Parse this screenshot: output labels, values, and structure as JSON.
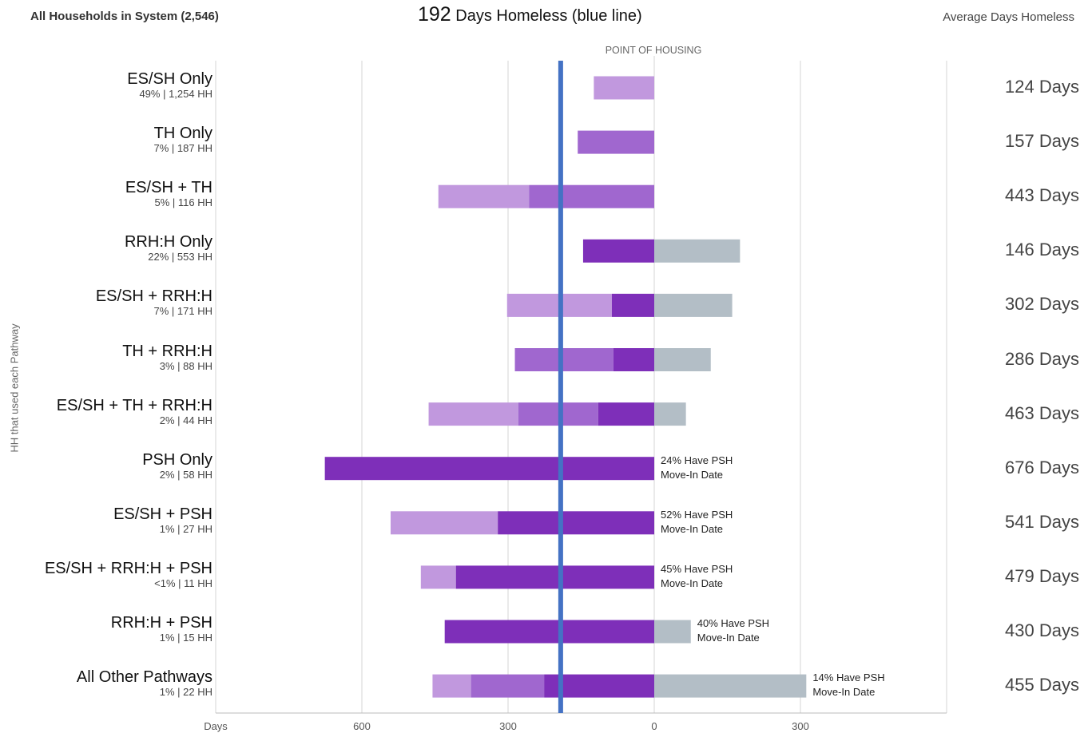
{
  "header": {
    "left_title": "All Households in System (2,546)",
    "center_number": "192",
    "center_text": " Days Homeless (blue line)",
    "right_title": "Average Days Homeless"
  },
  "y_axis_title": "HH that used each Pathway",
  "point_of_housing_label": "POINT OF HOUSING",
  "colors": {
    "light_purple": "#c198de",
    "mid_purple": "#a067cf",
    "dark_purple": "#7e2fb9",
    "gray": "#b3bec6",
    "average_line": "#4472c4",
    "gridline": "#d4d4d4"
  },
  "chart_data": {
    "type": "bar",
    "orientation": "horizontal-diverging",
    "x_axis": {
      "ticks": [
        {
          "value": -900,
          "label": "Days"
        },
        {
          "value": -600,
          "label": "600"
        },
        {
          "value": -300,
          "label": "300"
        },
        {
          "value": 0,
          "label": "0"
        },
        {
          "value": 300,
          "label": "300"
        }
      ],
      "range": [
        -900,
        600
      ],
      "grid": true
    },
    "average_line_days": 192,
    "categories": [
      {
        "name": "ES/SH Only",
        "sub": "49% | 1,254 HH",
        "avg": "124 Days",
        "segments": [
          {
            "from": -124,
            "to": 0,
            "color": "light_purple"
          }
        ],
        "note": ""
      },
      {
        "name": "TH Only",
        "sub": "7% | 187 HH",
        "avg": "157 Days",
        "segments": [
          {
            "from": -157,
            "to": 0,
            "color": "mid_purple"
          }
        ],
        "note": ""
      },
      {
        "name": "ES/SH + TH",
        "sub": "5% | 116 HH",
        "avg": "443 Days",
        "segments": [
          {
            "from": -443,
            "to": -257,
            "color": "light_purple"
          },
          {
            "from": -257,
            "to": 0,
            "color": "mid_purple"
          }
        ],
        "note": ""
      },
      {
        "name": "RRH:H Only",
        "sub": "22% | 553 HH",
        "avg": "146 Days",
        "segments": [
          {
            "from": -146,
            "to": 0,
            "color": "dark_purple"
          },
          {
            "from": 0,
            "to": 176,
            "color": "gray"
          }
        ],
        "note": ""
      },
      {
        "name": "ES/SH + RRH:H",
        "sub": "7% | 171 HH",
        "avg": "302 Days",
        "segments": [
          {
            "from": -302,
            "to": -87,
            "color": "light_purple"
          },
          {
            "from": -87,
            "to": 0,
            "color": "dark_purple"
          },
          {
            "from": 0,
            "to": 160,
            "color": "gray"
          }
        ],
        "note": ""
      },
      {
        "name": "TH + RRH:H",
        "sub": "3% | 88 HH",
        "avg": "286 Days",
        "segments": [
          {
            "from": -286,
            "to": -84,
            "color": "mid_purple"
          },
          {
            "from": -84,
            "to": 0,
            "color": "dark_purple"
          },
          {
            "from": 0,
            "to": 116,
            "color": "gray"
          }
        ],
        "note": ""
      },
      {
        "name": "ES/SH + TH + RRH:H",
        "sub": "2% | 44 HH",
        "avg": "463 Days",
        "segments": [
          {
            "from": -463,
            "to": -279,
            "color": "light_purple"
          },
          {
            "from": -279,
            "to": -115,
            "color": "mid_purple"
          },
          {
            "from": -115,
            "to": 0,
            "color": "dark_purple"
          },
          {
            "from": 0,
            "to": 65,
            "color": "gray"
          }
        ],
        "note": ""
      },
      {
        "name": "PSH Only",
        "sub": "2% | 58 HH",
        "avg": "676 Days",
        "segments": [
          {
            "from": -676,
            "to": 0,
            "color": "dark_purple"
          }
        ],
        "note": [
          "24% Have PSH",
          "Move-In Date"
        ],
        "note_at": 0
      },
      {
        "name": "ES/SH + PSH",
        "sub": "1% | 27 HH",
        "avg": "541 Days",
        "segments": [
          {
            "from": -541,
            "to": -321,
            "color": "light_purple"
          },
          {
            "from": -321,
            "to": 0,
            "color": "dark_purple"
          }
        ],
        "note": [
          "52% Have PSH",
          "Move-In Date"
        ],
        "note_at": 0
      },
      {
        "name": "ES/SH + RRH:H + PSH",
        "sub": "<1% | 11 HH",
        "avg": "479 Days",
        "segments": [
          {
            "from": -479,
            "to": -407,
            "color": "light_purple"
          },
          {
            "from": -407,
            "to": 0,
            "color": "dark_purple"
          }
        ],
        "note": [
          "45% Have PSH",
          "Move-In Date"
        ],
        "note_at": 0
      },
      {
        "name": "RRH:H + PSH",
        "sub": "1% | 15 HH",
        "avg": "430 Days",
        "segments": [
          {
            "from": -430,
            "to": 0,
            "color": "dark_purple"
          },
          {
            "from": 0,
            "to": 75,
            "color": "gray"
          }
        ],
        "note": [
          "40% Have PSH",
          "Move-In Date"
        ],
        "note_at": 75
      },
      {
        "name": "All Other Pathways",
        "sub": "1% | 22 HH",
        "avg": "455 Days",
        "segments": [
          {
            "from": -455,
            "to": -376,
            "color": "light_purple"
          },
          {
            "from": -376,
            "to": -226,
            "color": "mid_purple"
          },
          {
            "from": -226,
            "to": 0,
            "color": "dark_purple"
          },
          {
            "from": 0,
            "to": 312,
            "color": "gray"
          }
        ],
        "note": [
          "14% Have PSH",
          "Move-In Date"
        ],
        "note_at": 312
      }
    ]
  }
}
